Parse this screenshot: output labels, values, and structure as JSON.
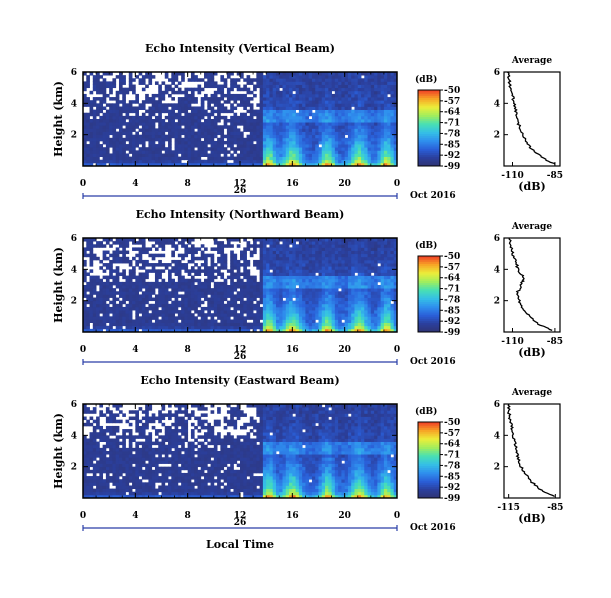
{
  "colors": {
    "background": "#ffffff",
    "colormap": [
      "#2f3472",
      "#2b3f9c",
      "#2a5fd8",
      "#2f8fee",
      "#35c0e6",
      "#48e0b3",
      "#a2ee5c",
      "#ecee3a",
      "#f7a526",
      "#f04026"
    ]
  },
  "chart_data": [
    {
      "id": "vertical",
      "type": "heatmap",
      "title": "Echo Intensity (Vertical Beam)",
      "ylabel": "Height (km)",
      "xlabel": "",
      "x_ticks": [
        "0",
        "4",
        "8",
        "12",
        "16",
        "20",
        "0"
      ],
      "x_range_hours": [
        0,
        24
      ],
      "y_ticks": [
        "2",
        "4",
        "6"
      ],
      "y_range_km": [
        0,
        6
      ],
      "date_label": "Oct 2016",
      "day_label": "26",
      "colorbar": {
        "unit": "(dB)",
        "ticks": [
          "-50",
          "-57",
          "-64",
          "-71",
          "-78",
          "-85",
          "-92",
          "-99"
        ],
        "range": [
          -99,
          -50
        ]
      },
      "average": {
        "title": "Average",
        "xlabel": "(dB)",
        "x_ticks": [
          "-110",
          "-85"
        ],
        "y_ticks": [
          "2",
          "4",
          "6"
        ],
        "xlim": [
          -115,
          -82
        ],
        "height_km": [
          0.1,
          0.5,
          1.0,
          1.5,
          2.0,
          2.5,
          3.0,
          3.5,
          4.0,
          4.5,
          5.0,
          5.5,
          6.0
        ],
        "values_db": [
          -85,
          -92,
          -98,
          -102,
          -104,
          -106,
          -107,
          -108,
          -109,
          -110,
          -111,
          -112,
          -113
        ]
      }
    },
    {
      "id": "northward",
      "type": "heatmap",
      "title": "Echo Intensity (Northward Beam)",
      "ylabel": "Height (km)",
      "xlabel": "",
      "x_ticks": [
        "0",
        "4",
        "8",
        "12",
        "16",
        "20",
        "0"
      ],
      "x_range_hours": [
        0,
        24
      ],
      "y_ticks": [
        "2",
        "4",
        "6"
      ],
      "y_range_km": [
        0,
        6
      ],
      "date_label": "Oct 2016",
      "day_label": "26",
      "colorbar": {
        "unit": "(dB)",
        "ticks": [
          "-50",
          "-57",
          "-64",
          "-71",
          "-78",
          "-85",
          "-92",
          "-99"
        ],
        "range": [
          -99,
          -50
        ]
      },
      "average": {
        "title": "Average",
        "xlabel": "(dB)",
        "x_ticks": [
          "-110",
          "-85"
        ],
        "y_ticks": [
          "2",
          "4",
          "6"
        ],
        "xlim": [
          -115,
          -82
        ],
        "height_km": [
          0.1,
          0.5,
          1.0,
          1.5,
          2.0,
          2.5,
          3.0,
          3.3,
          3.6,
          4.0,
          4.5,
          5.0,
          5.5,
          6.0
        ],
        "values_db": [
          -86,
          -95,
          -100,
          -104,
          -106,
          -107,
          -105,
          -104,
          -104,
          -107,
          -108,
          -110,
          -111,
          -112
        ]
      }
    },
    {
      "id": "eastward",
      "type": "heatmap",
      "title": "Echo Intensity (Eastward Beam)",
      "ylabel": "Height (km)",
      "xlabel": "Local Time",
      "x_ticks": [
        "0",
        "4",
        "8",
        "12",
        "16",
        "20",
        "0"
      ],
      "x_range_hours": [
        0,
        24
      ],
      "y_ticks": [
        "2",
        "4",
        "6"
      ],
      "y_range_km": [
        0,
        6
      ],
      "date_label": "Oct 2016",
      "day_label": "26",
      "colorbar": {
        "unit": "(dB)",
        "ticks": [
          "-50",
          "-57",
          "-64",
          "-71",
          "-78",
          "-85",
          "-92",
          "-99"
        ],
        "range": [
          -99,
          -50
        ]
      },
      "average": {
        "title": "Average",
        "xlabel": "(dB)",
        "x_ticks": [
          "-115",
          "-85"
        ],
        "y_ticks": [
          "2",
          "4",
          "6"
        ],
        "xlim": [
          -118,
          -82
        ],
        "height_km": [
          0.1,
          0.5,
          1.0,
          1.5,
          2.0,
          2.5,
          3.0,
          3.5,
          4.0,
          4.5,
          5.0,
          5.5,
          6.0
        ],
        "values_db": [
          -86,
          -94,
          -100,
          -104,
          -107,
          -109,
          -110,
          -111,
          -112,
          -113,
          -114,
          -115,
          -115
        ]
      }
    }
  ]
}
